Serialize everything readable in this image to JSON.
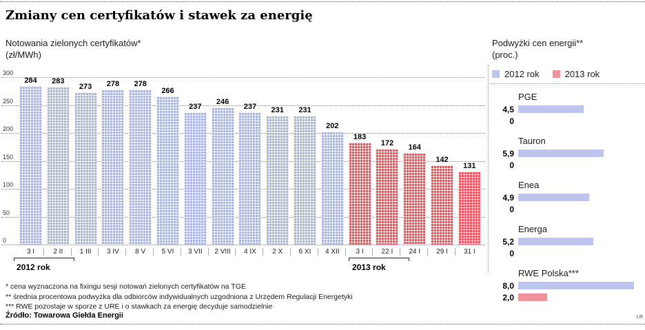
{
  "page": {
    "title": "Zmiany cen certyfikatów i stawek za energię",
    "credit": "LR",
    "source": "Źródło: Towarowa Giełda Energii",
    "footnotes": [
      "* cena wyznaczona na fixingu sesji notowań zielonych certyfikatów na TGE",
      "** średnia procentowa podwyżka dla odbiorców indywidualnych uzgodniona z Urzędem Regulacji Energetyki",
      "*** RWE pozostaje w sporze z URE i o stawkach za energię decyduje samodzielnie"
    ]
  },
  "chart_data": [
    {
      "type": "bar",
      "title": "Notowania zielonych certyfikatów*",
      "ylabel": "(zł/MWh)",
      "ylim": [
        0,
        300
      ],
      "yticks": [
        300,
        250,
        200,
        150,
        100,
        50,
        0
      ],
      "grid": true,
      "legend_position": "x-axis-brackets",
      "series": [
        {
          "name": "2012 rok",
          "color": "#a9b2e4",
          "categories": [
            "3 I",
            "2 II",
            "1 III",
            "3 IV",
            "8 V",
            "5 VI",
            "3 VII",
            "2 VIII",
            "4 IX",
            "2 X",
            "6 XI",
            "4 XII"
          ],
          "values": [
            284,
            283,
            273,
            278,
            278,
            266,
            237,
            246,
            237,
            231,
            231,
            202
          ]
        },
        {
          "name": "2013 rok",
          "color": "#e25560",
          "categories": [
            "3 I",
            "22 I",
            "24 I",
            "29 I",
            "31 I"
          ],
          "values": [
            183,
            172,
            164,
            142,
            131
          ]
        }
      ]
    },
    {
      "type": "bar",
      "orientation": "horizontal",
      "title": "Podwyżki cen energii**",
      "xlabel": "(proc.)",
      "xmax": 8,
      "legend": [
        {
          "label": "2012 rok",
          "color": "#bdc5ee"
        },
        {
          "label": "2013 rok",
          "color": "#ef939b"
        }
      ],
      "categories": [
        "PGE",
        "Tauron",
        "Enea",
        "Energa",
        "RWE Polska***"
      ],
      "series": [
        {
          "name": "2012 rok",
          "values": [
            4.5,
            5.9,
            4.9,
            5.2,
            8.0
          ],
          "labels": [
            "4,5",
            "5,9",
            "4,9",
            "5,2",
            "8,0"
          ]
        },
        {
          "name": "2013 rok",
          "values": [
            0,
            0,
            0,
            0,
            2.0
          ],
          "labels": [
            "0",
            "0",
            "0",
            "0",
            "2,0"
          ]
        }
      ]
    }
  ]
}
